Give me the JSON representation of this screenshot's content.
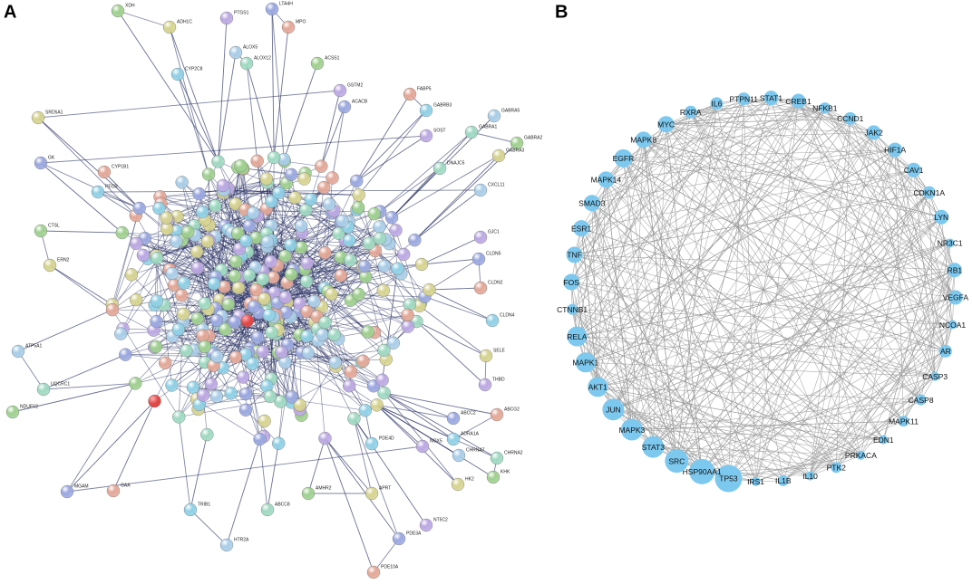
{
  "panels": [
    {
      "label": "A",
      "nodes": [
        "XDH",
        "ADH1C",
        "PTGS1",
        "LTA4H",
        "MPO",
        "CYP2C8",
        "ALOX5",
        "ALOX12",
        "ACSS1",
        "SRD5A1",
        "GSTM2",
        "ACACB",
        "FABP5",
        "GABRB3",
        "GABRA5",
        "GABRA1",
        "GABRA2",
        "GABRA3",
        "SOST",
        "GK",
        "CYP1B1",
        "PECR",
        "CXCL11",
        "DNAJC5",
        "CTSL",
        "ERN2",
        "GJC1",
        "CLDN5",
        "CLDN2",
        "CLDN4",
        "ATP5A1",
        "UQCRC1",
        "NDUFV2",
        "SELE",
        "THBD",
        "ABCC2",
        "ABCG2",
        "ADRA1A",
        "CHRNA7",
        "CHRNA2",
        "KHK",
        "HK2",
        "NOX5",
        "MGAM",
        "GAA",
        "TRIB1",
        "HTR2A",
        "ABCC8",
        "AMHR2",
        "APRT",
        "NT5C2",
        "PDE3A",
        "PDE10A",
        "PDE4D"
      ]
    },
    {
      "label": "B",
      "nodes": [
        "STAT1",
        "CREB1",
        "NFKB1",
        "CCND1",
        "JAK2",
        "HIF1A",
        "CAV1",
        "CDKN1A",
        "LYN",
        "NR3C1",
        "RB1",
        "VEGFA",
        "NCOA1",
        "AR",
        "CASP3",
        "CASP8",
        "MAPK11",
        "EDN1",
        "PRKACA",
        "PTK2",
        "IL10",
        "IL1B",
        "IRS1",
        "TP53",
        "HSP90AA1",
        "SRC",
        "STAT3",
        "MAPK3",
        "JUN",
        "AKT1",
        "MAPK1",
        "RELA",
        "CTNNB1",
        "FOS",
        "TNF",
        "ESR1",
        "SMAD3",
        "MAPK14",
        "EGFR",
        "MAPK8",
        "MYC",
        "RXRA",
        "IL6",
        "PTPN11"
      ]
    }
  ]
}
